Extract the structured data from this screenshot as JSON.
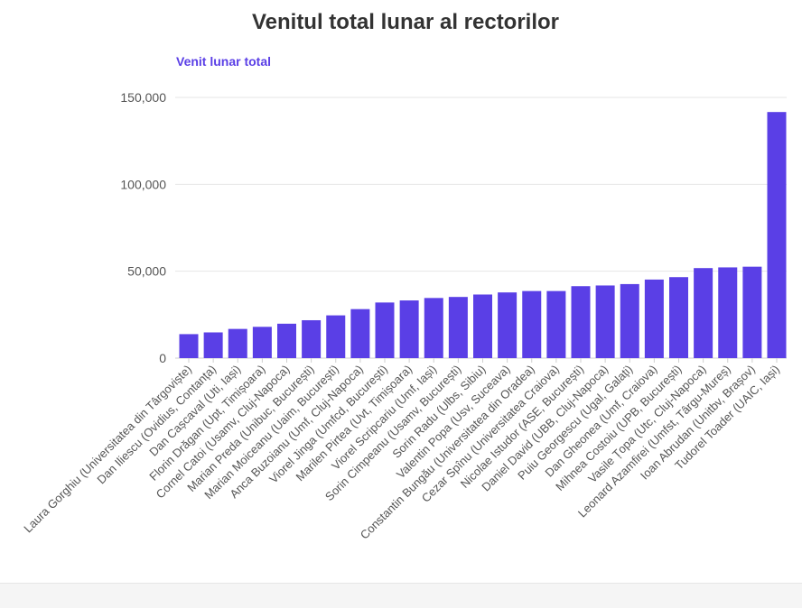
{
  "chart_data": {
    "type": "bar",
    "title": "Venitul total lunar al rectorilor",
    "ylabel": "Venit lunar total",
    "xlabel": "",
    "ylim": [
      0,
      150000
    ],
    "yticks": [
      0,
      50000,
      100000,
      150000
    ],
    "ytick_labels": [
      "0",
      "50,000",
      "100,000",
      "150,000"
    ],
    "bar_color": "#5a3fe6",
    "categories": [
      "Laura Gorghiu (Universitatea din Târgoviște)",
      "Dan Iliescu (Ovidius, Contanța)",
      "Dan Cașcaval (Uti, Iași)",
      "Florin Drăgan (Upt, Timișoara)",
      "Cornel Catoi (Usamv, Cluj-Napoca)",
      "Marian Preda (Unibuc, București)",
      "Marian Moiceanu (Uaim, București)",
      "Anca Buzoianu (Umf, Cluj-Napoca)",
      "Viorel Jinga (Umfcd, București)",
      "Marilen Pirtea (Uvt, Timișoara)",
      "Viorel Scripcariu (Umf, Iași)",
      "Sorin Cimpeanu (Usamv, București)",
      "Sorin Radu (Ulbs, Sibiu)",
      "Valentin Popa (Usv, Suceava)",
      "Constantin Bungău (Universitatea din Oradea)",
      "Cezar Spînu (Universitatea Craiova)",
      "Nicolae Istudor (ASE, București)",
      "Daniel David (UBB, Cluj-Napoca)",
      "Puiu Georgescu (Ugal, Galați)",
      "Dan Gheonea (Umf, Craiova)",
      "Mihnea Costoiu (UPB, București)",
      "Vasile Țopa (Utc, Cluj-Napoca)",
      "Leonard Azamfirei (Umfst, Târgu-Mureș)",
      "Ioan Abrudan (Unitbv, Brașov)",
      "Tudorel Toader (UAIC, Iași)"
    ],
    "values": [
      13800,
      14800,
      16800,
      18000,
      19800,
      21800,
      24600,
      28200,
      32000,
      33200,
      34600,
      35200,
      36600,
      37800,
      38600,
      38600,
      41400,
      41800,
      42600,
      45200,
      46600,
      51800,
      52200,
      52600,
      141600
    ]
  }
}
